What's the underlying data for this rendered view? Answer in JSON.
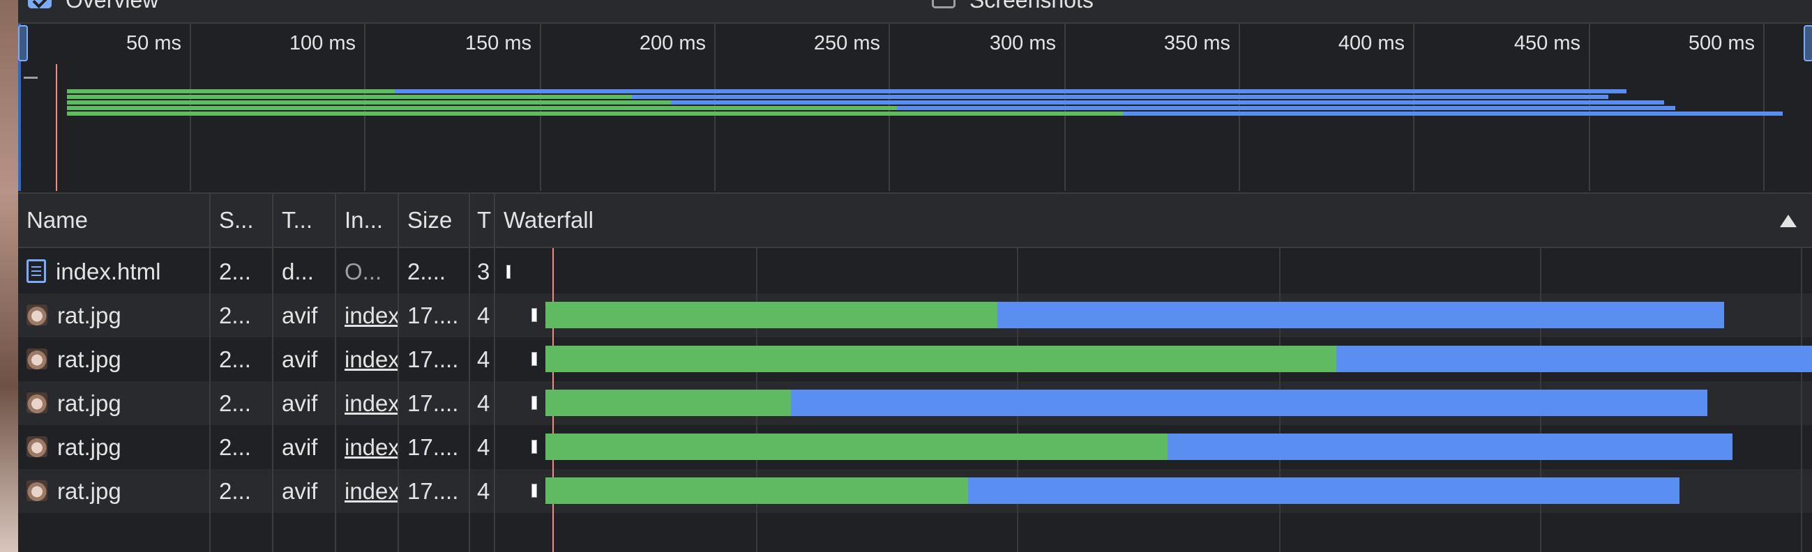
{
  "toolbar": {
    "overview_label": "Overview",
    "screenshots_label": "Screenshots",
    "overview_checked": true,
    "screenshots_checked": false
  },
  "overview": {
    "tick_labels": [
      "50 ms",
      "100 ms",
      "150 ms",
      "200 ms",
      "250 ms",
      "300 ms",
      "350 ms",
      "400 ms",
      "450 ms",
      "500 ms"
    ]
  },
  "columns": {
    "name": "Name",
    "status": "S...",
    "type": "T...",
    "initiator": "In...",
    "size": "Size",
    "time": "T",
    "waterfall": "Waterfall"
  },
  "rows": [
    {
      "name": "index.html",
      "icon": "document-icon",
      "status": "2...",
      "type": "d...",
      "initiator": "O...",
      "initiator_link": false,
      "size": "2....",
      "time": "3"
    },
    {
      "name": "rat.jpg",
      "icon": "image-icon",
      "status": "2...",
      "type": "avif",
      "initiator": "index",
      "initiator_link": true,
      "size": "17....",
      "time": "4"
    },
    {
      "name": "rat.jpg",
      "icon": "image-icon",
      "status": "2...",
      "type": "avif",
      "initiator": "index",
      "initiator_link": true,
      "size": "17....",
      "time": "4"
    },
    {
      "name": "rat.jpg",
      "icon": "image-icon",
      "status": "2...",
      "type": "avif",
      "initiator": "index",
      "initiator_link": true,
      "size": "17....",
      "time": "4"
    },
    {
      "name": "rat.jpg",
      "icon": "image-icon",
      "status": "2...",
      "type": "avif",
      "initiator": "index",
      "initiator_link": true,
      "size": "17....",
      "time": "4"
    },
    {
      "name": "rat.jpg",
      "icon": "image-icon",
      "status": "2...",
      "type": "avif",
      "initiator": "index",
      "initiator_link": true,
      "size": "17....",
      "time": "4"
    }
  ],
  "colors": {
    "waiting_green": "#5fba62",
    "download_blue": "#5a8ef0",
    "dom_marker_red": "#f28b82",
    "accent": "#7cacf8"
  }
}
